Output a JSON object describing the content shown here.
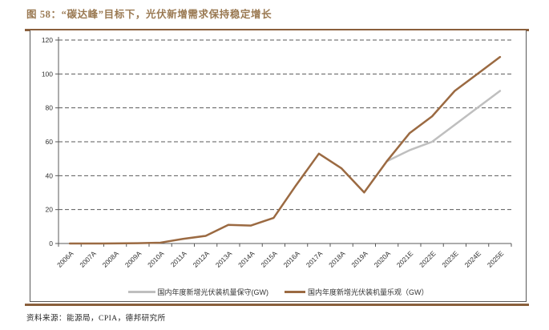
{
  "figure": {
    "title": "图 58：“碳达峰”目标下，光伏新增需求保持稳定增长",
    "source": "资料来源：能源局，CPIA，德邦研究所"
  },
  "colors": {
    "brand_brown": "#8a5f3c",
    "title_brown": "#9a7952",
    "axis_gray": "#595959",
    "label_gray": "#333333",
    "series_conservative": "#bfbfbf",
    "series_optimistic": "#9b6a42"
  },
  "chart_data": {
    "type": "line",
    "title": "",
    "xlabel": "",
    "ylabel": "",
    "ylim": [
      0,
      120
    ],
    "yticks": [
      0,
      20,
      40,
      60,
      80,
      100,
      120
    ],
    "grid": "horizontal-dashed",
    "legend_position": "bottom",
    "categories": [
      "2006A",
      "2007A",
      "2008A",
      "2009A",
      "2010A",
      "2011A",
      "2012A",
      "2013A",
      "2014A",
      "2015A",
      "2016A",
      "2017A",
      "2018A",
      "2019A",
      "2020A",
      "2021E",
      "2022E",
      "2023E",
      "2024E",
      "2025E"
    ],
    "series": [
      {
        "name": "国内年度新增光伏装机量保守(GW)",
        "color": "#bfbfbf",
        "values": [
          null,
          null,
          null,
          null,
          null,
          null,
          null,
          null,
          null,
          null,
          null,
          null,
          null,
          null,
          48.5,
          55,
          60,
          70,
          80,
          90
        ]
      },
      {
        "name": "国内年度新增光伏装机量乐观（GW）",
        "color": "#9b6a42",
        "values": [
          0.01,
          0.02,
          0.04,
          0.2,
          0.5,
          2.7,
          4.5,
          11,
          10.6,
          15.1,
          34.5,
          53,
          44.3,
          30.1,
          48.5,
          65,
          75,
          90,
          100,
          110
        ]
      }
    ]
  }
}
